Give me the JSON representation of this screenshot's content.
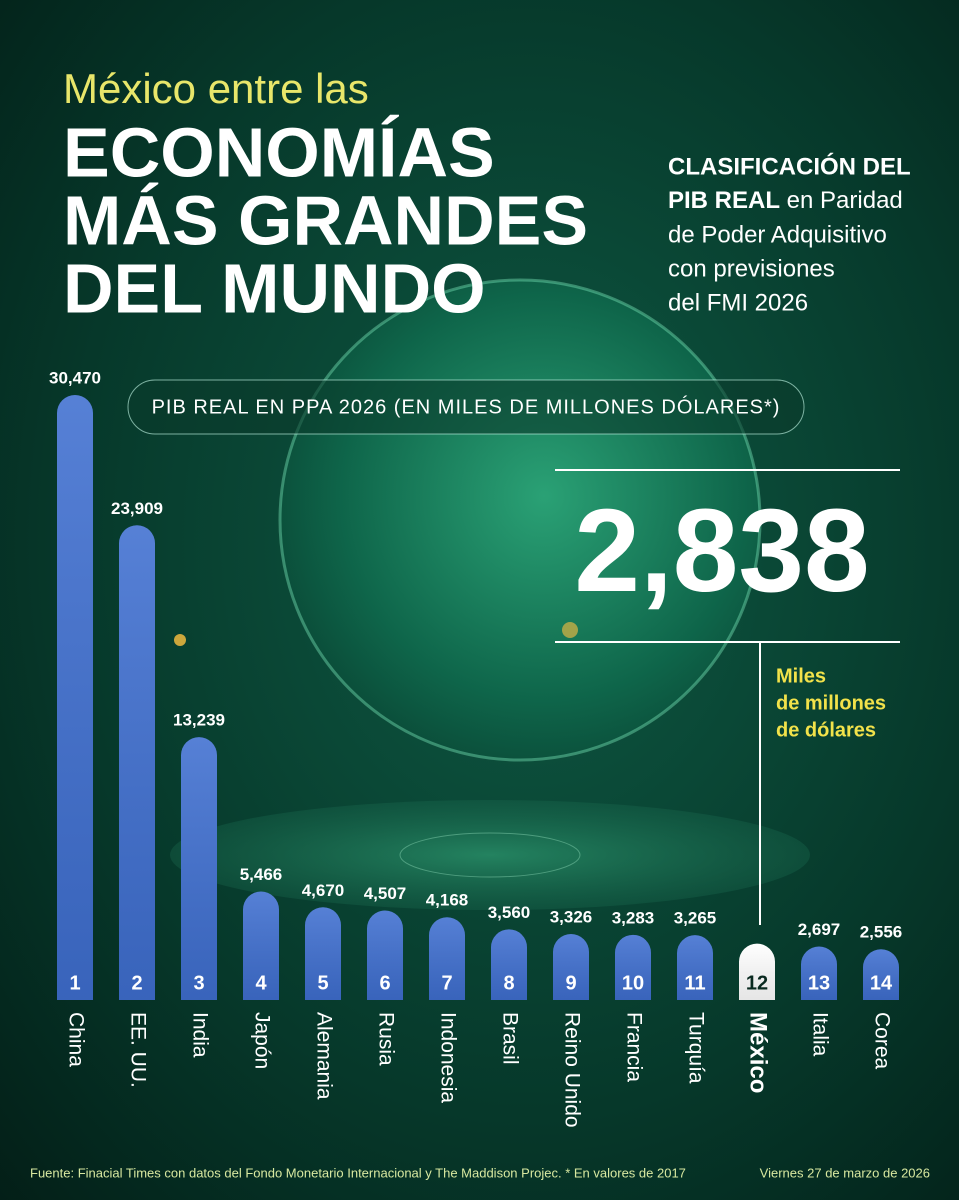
{
  "chart_data": {
    "type": "bar",
    "title": "México entre las",
    "headline": [
      "ECONOMÍAS",
      "MÁS GRANDES",
      "DEL MUNDO"
    ],
    "subtitle_bold": [
      "CLASIFICACIÓN DEL",
      "PIB REAL"
    ],
    "subtitle": [
      " en Paridad",
      "de Poder Adquisitivo",
      "con previsiones",
      "del FMI 2026"
    ],
    "axis_label": "PIB REAL EN PPA 2026 (EN MILES DE MILLONES DÓLARES*)",
    "unit_label": [
      "Miles",
      "de millones",
      "de dólares"
    ],
    "categories": [
      "China",
      "EE. UU.",
      "India",
      "Japón",
      "Alemania",
      "Rusia",
      "Indonesia",
      "Brasil",
      "Reino Unido",
      "Francia",
      "Turquía",
      "México",
      "Italia",
      "Corea"
    ],
    "ranks": [
      1,
      2,
      3,
      4,
      5,
      6,
      7,
      8,
      9,
      10,
      11,
      12,
      13,
      14
    ],
    "values": [
      30470,
      23909,
      13239,
      5466,
      4670,
      4507,
      4168,
      3560,
      3326,
      3283,
      3265,
      2838,
      2697,
      2556
    ],
    "value_labels": [
      "30,470",
      "23,909",
      "13,239",
      "5,466",
      "4,670",
      "4,507",
      "4,168",
      "3,560",
      "3,326",
      "3,283",
      "3,265",
      "2,838",
      "2,697",
      "2,556"
    ],
    "colors": [
      "#3f6fd0",
      "#3f6fd0",
      "#3f6fd0",
      "#3f6fd0",
      "#3f6fd0",
      "#3f6fd0",
      "#3f6fd0",
      "#3f6fd0",
      "#3f6fd0",
      "#3f6fd0",
      "#3f6fd0",
      "#ffffff",
      "#3f6fd0",
      "#3f6fd0"
    ],
    "source": "Fuente: Finacial Times con datos del Fondo Monetario Internacional y The Maddison Projec. * En valores de 2017",
    "date": "Viernes 27 de marzo de 2026"
  }
}
